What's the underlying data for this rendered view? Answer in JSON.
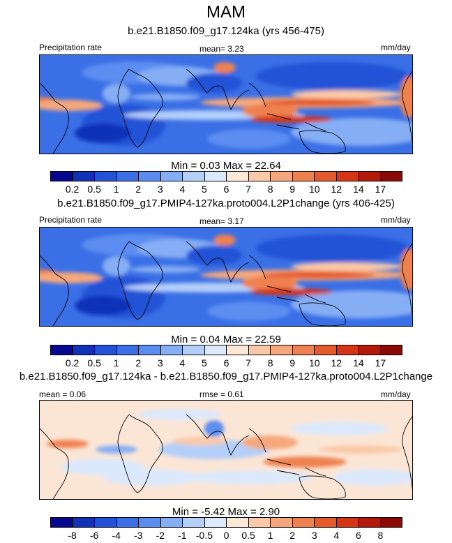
{
  "title": "MAM",
  "panels": [
    {
      "title": "b.e21.B1850.f09_g17.124ka (yrs 456-475)",
      "left_label": "Precipitation rate",
      "center_label": "mean=  3.23",
      "right_label": "mm/day",
      "minmax": "Min =   0.03 Max =  22.64",
      "type": "abs"
    },
    {
      "title": "b.e21.B1850.f09_g17.PMIP4-127ka.proto004.L2P1change (yrs 406-425)",
      "left_label": "Precipitation rate",
      "center_label": "mean=  3.17",
      "right_label": "mm/day",
      "minmax": "Min =   0.04 Max =  22.59",
      "type": "abs"
    },
    {
      "title": "b.e21.B1850.f09_g17.124ka - b.e21.B1850.f09_g17.PMIP4-127ka.proto004.L2P1change",
      "left_label": "mean =  0.06",
      "center_label": "rmse =  0.61",
      "right_label": "mm/day",
      "minmax": "Min =  -5.42 Max =    2.90",
      "type": "diff"
    }
  ],
  "colorbars": {
    "abs": {
      "colors": [
        "#08088e",
        "#1131b8",
        "#2352d6",
        "#3a6fe6",
        "#5b8df0",
        "#86aef4",
        "#b4cff8",
        "#dce9fc",
        "#fde7d6",
        "#f9c9a8",
        "#f5a77b",
        "#ef8150",
        "#e55a2c",
        "#d43514",
        "#b31a0b",
        "#8c0a05"
      ],
      "ticks": [
        "0.2",
        "0.5",
        "1",
        "2",
        "3",
        "4",
        "5",
        "6",
        "7",
        "8",
        "9",
        "10",
        "12",
        "14",
        "17"
      ]
    },
    "diff": {
      "colors": [
        "#08088e",
        "#1131b8",
        "#2352d6",
        "#3a6fe6",
        "#5b8df0",
        "#86aef4",
        "#b4cff8",
        "#dce9fc",
        "#fde7d6",
        "#f9c9a8",
        "#f5a77b",
        "#ef8150",
        "#e55a2c",
        "#d43514",
        "#b31a0b",
        "#8c0a05"
      ],
      "ticks": [
        "-8",
        "-6",
        "-4",
        "-3",
        "-2",
        "-1",
        "-0.5",
        "0",
        "0.5",
        "1",
        "2",
        "3",
        "4",
        "6",
        "8"
      ]
    }
  }
}
